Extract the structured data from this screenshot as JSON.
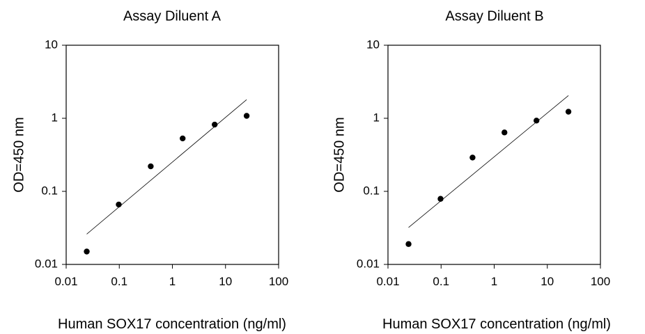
{
  "chart_data": [
    {
      "type": "scatter",
      "title": "Assay Diluent A",
      "xlabel": "Human SOX17 concentration (ng/ml)",
      "ylabel": "OD=450 nm",
      "xscale": "log",
      "yscale": "log",
      "xlim": [
        0.01,
        100
      ],
      "ylim": [
        0.01,
        10
      ],
      "xticks": [
        "0.01",
        "0.1",
        "1",
        "10",
        "100"
      ],
      "yticks": [
        "0.01",
        "0.1",
        "1",
        "10"
      ],
      "grid": false,
      "series": [
        {
          "x": [
            0.0244,
            0.0977,
            0.391,
            1.56,
            6.25,
            25
          ],
          "y": [
            0.015,
            0.066,
            0.22,
            0.53,
            0.82,
            1.08
          ]
        }
      ],
      "fit_line": {
        "x": [
          0.0244,
          25
        ],
        "y": [
          0.026,
          1.8
        ]
      }
    },
    {
      "type": "scatter",
      "title": "Assay Diluent B",
      "xlabel": "Human SOX17 concentration (ng/ml)",
      "ylabel": "OD=450 nm",
      "xscale": "log",
      "yscale": "log",
      "xlim": [
        0.01,
        100
      ],
      "ylim": [
        0.01,
        10
      ],
      "xticks": [
        "0.01",
        "0.1",
        "1",
        "10",
        "100"
      ],
      "yticks": [
        "0.01",
        "0.1",
        "1",
        "10"
      ],
      "grid": false,
      "series": [
        {
          "x": [
            0.0244,
            0.0977,
            0.391,
            1.56,
            6.25,
            25
          ],
          "y": [
            0.019,
            0.079,
            0.29,
            0.64,
            0.93,
            1.23
          ]
        }
      ],
      "fit_line": {
        "x": [
          0.0244,
          25
        ],
        "y": [
          0.032,
          2.05
        ]
      }
    }
  ]
}
